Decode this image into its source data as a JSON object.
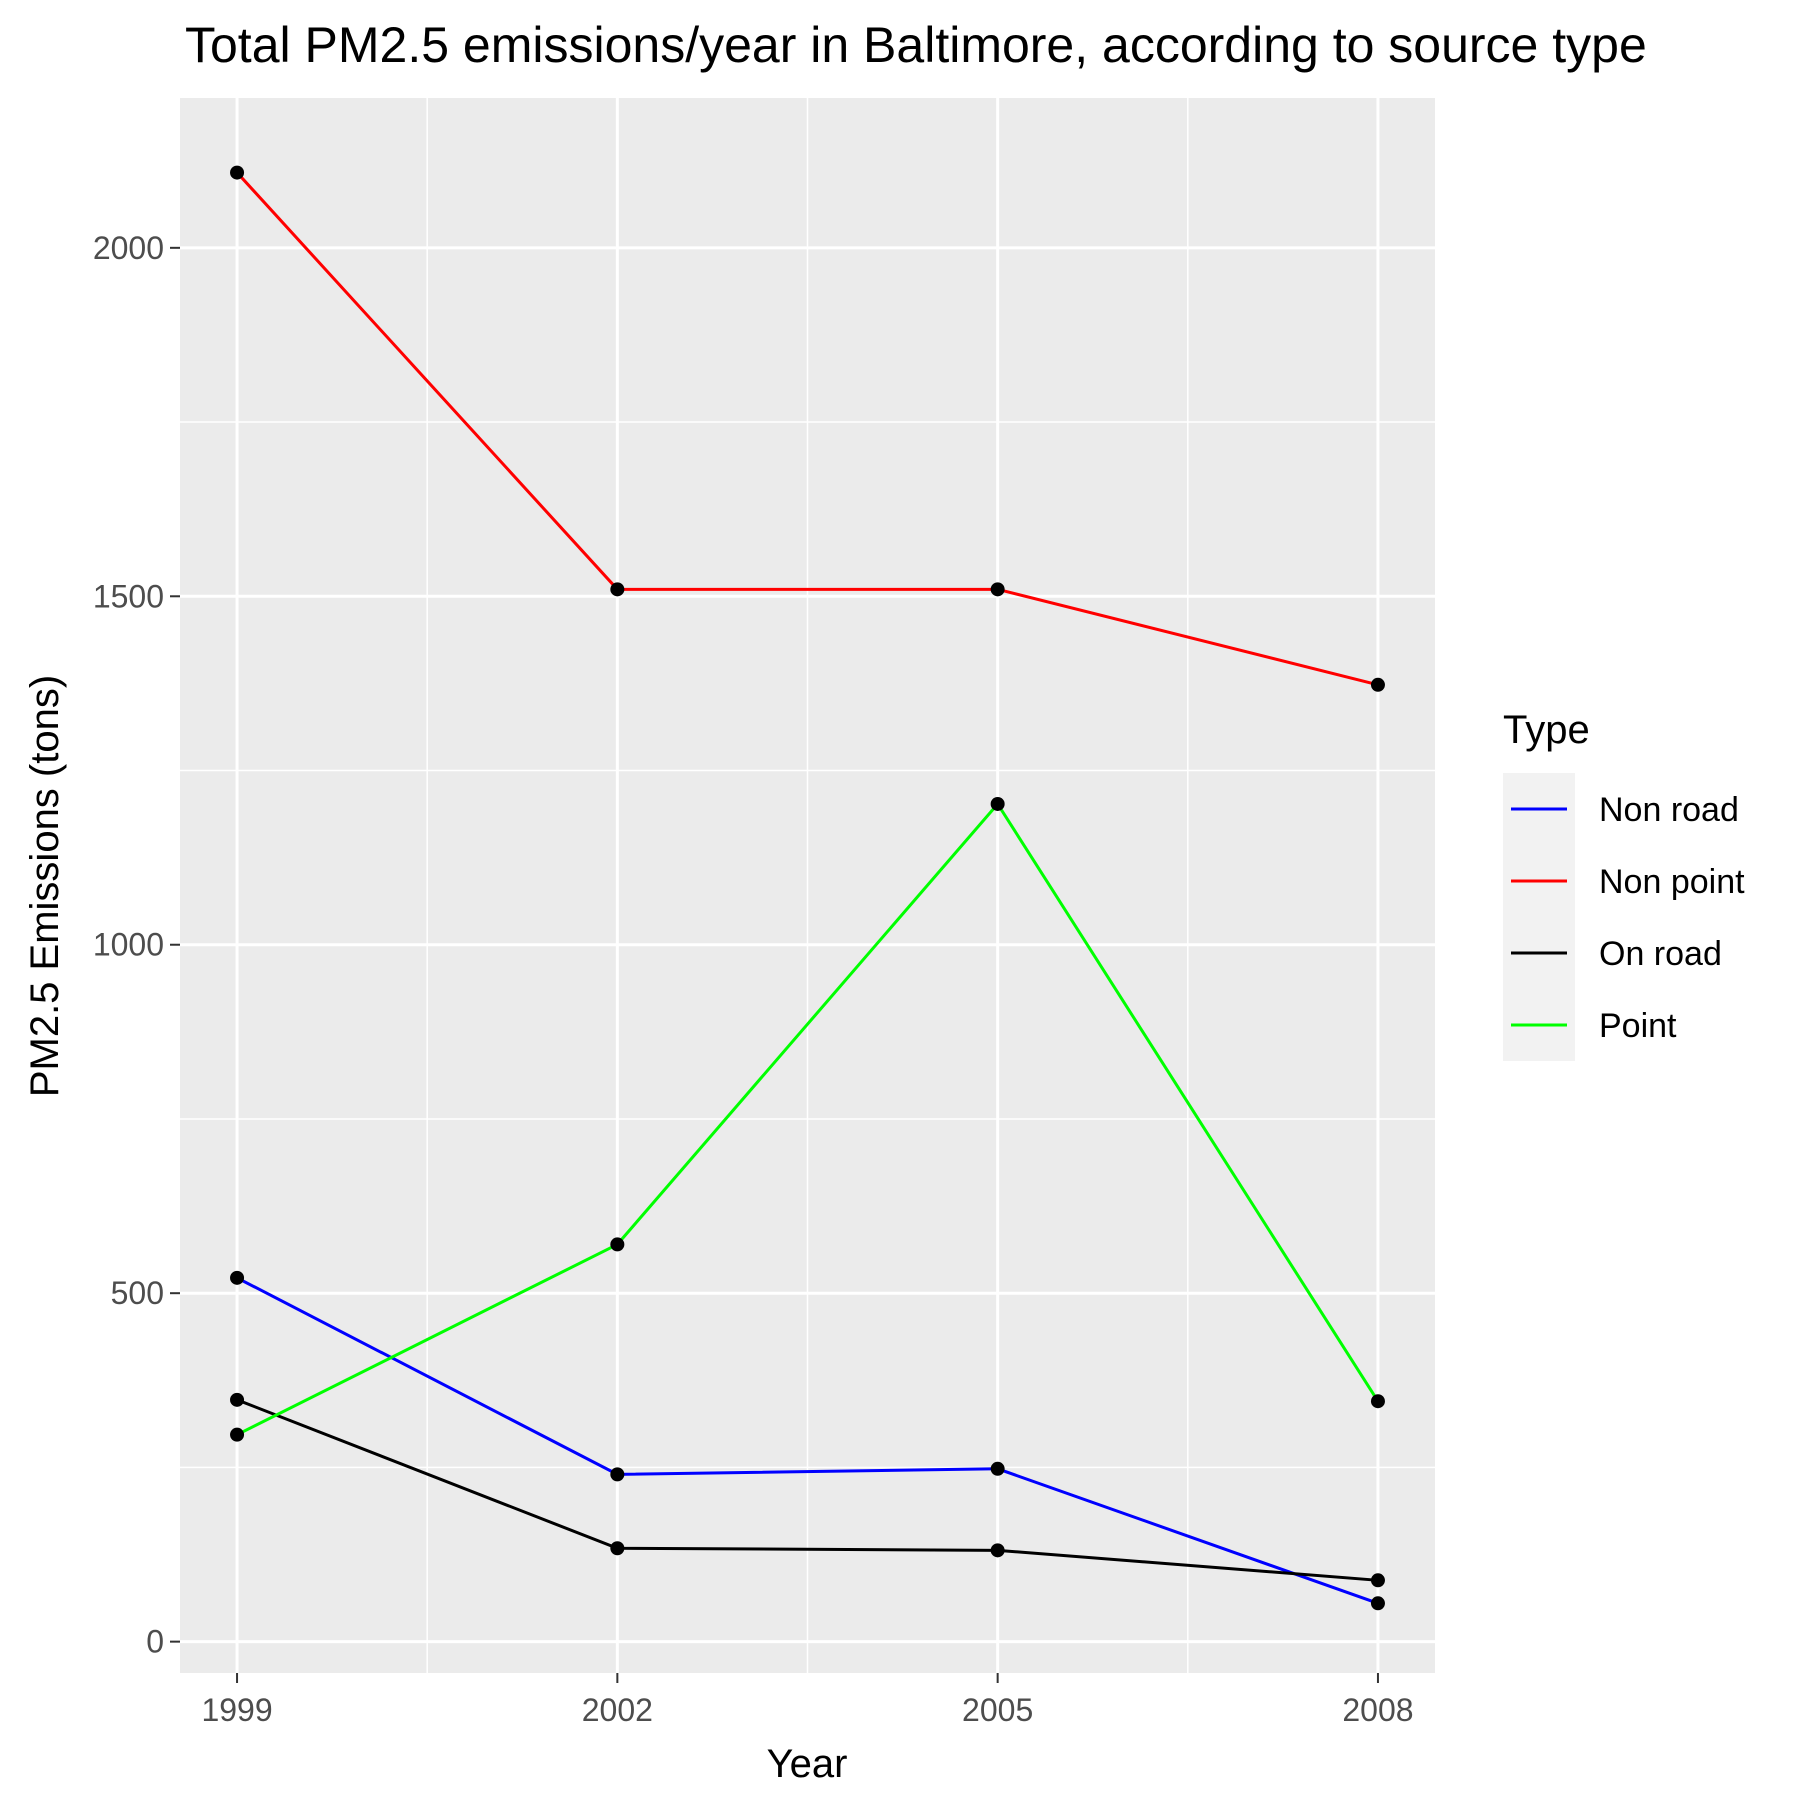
{
  "chart_data": {
    "type": "line",
    "title": "Total PM2.5 emissions/year in Baltimore, according to source type",
    "xlabel": "Year",
    "ylabel": "PM2.5 Emissions (tons)",
    "x": [
      1999,
      2002,
      2005,
      2008
    ],
    "x_tick_labels": [
      "1999",
      "2002",
      "2005",
      "2008"
    ],
    "xlim": [
      1998.55,
      2008.45
    ],
    "ylim": [
      -45,
      2215
    ],
    "y_ticks": [
      0,
      500,
      1000,
      1500,
      2000
    ],
    "y_tick_labels": [
      "0",
      "500",
      "1000",
      "1500",
      "2000"
    ],
    "grid": true,
    "legend_title": "Type",
    "legend_position": "right",
    "series": [
      {
        "name": "Non road",
        "color": "#0000ff",
        "values": [
          522,
          240,
          248,
          55
        ]
      },
      {
        "name": "Non point",
        "color": "#ff0000",
        "values": [
          2108,
          1510,
          1510,
          1373
        ]
      },
      {
        "name": "On road",
        "color": "#000000",
        "values": [
          347,
          134,
          131,
          88
        ]
      },
      {
        "name": "Point",
        "color": "#00ff00",
        "values": [
          297,
          570,
          1202,
          345
        ]
      }
    ],
    "point_color": "#000000"
  }
}
